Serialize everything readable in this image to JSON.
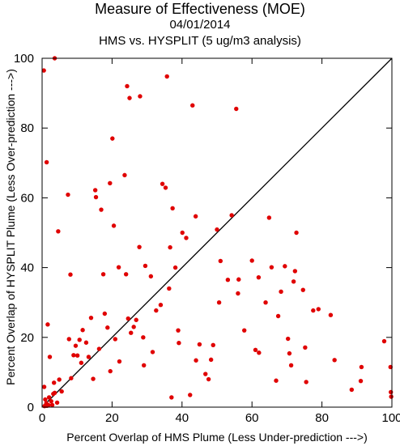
{
  "chart_data": {
    "type": "scatter",
    "title": "Measure of Effectiveness (MOE)",
    "subtitle": "04/01/2014",
    "subtitle2": "HMS vs. HYSPLIT  (5 ug/m3 analysis)",
    "xlabel": "Percent Overlap of HMS Plume (Less Under-prediction --->)",
    "ylabel": "Percent Overlap of HYSPLIT Plume (Less Over-prediction --->)",
    "xlim": [
      0,
      100
    ],
    "ylim": [
      0,
      100
    ],
    "xticks": [
      "0",
      "20",
      "40",
      "60",
      "80",
      "100"
    ],
    "yticks": [
      "0",
      "20",
      "40",
      "60",
      "80",
      "100"
    ],
    "grid": false,
    "reference_line": "y = x",
    "point_color": "#e00000",
    "line_color": "#000000",
    "points": [
      [
        0.5,
        96.5
      ],
      [
        3.6,
        100
      ],
      [
        1.3,
        70.2
      ],
      [
        4.6,
        50.4
      ],
      [
        1.6,
        23.7
      ],
      [
        2.2,
        14.4
      ],
      [
        0.6,
        5.8
      ],
      [
        0.7,
        0.3
      ],
      [
        1.2,
        1.1
      ],
      [
        1.8,
        0.6
      ],
      [
        2.6,
        1.7
      ],
      [
        3.2,
        3.8
      ],
      [
        4.3,
        1.3
      ],
      [
        4.9,
        7.9
      ],
      [
        5.6,
        4.5
      ],
      [
        3.4,
        7.0
      ],
      [
        2.0,
        2.8
      ],
      [
        0.9,
        2.2
      ],
      [
        1.4,
        0.4
      ],
      [
        2.9,
        0.6
      ],
      [
        3.6,
        4.1
      ],
      [
        7.4,
        60.9
      ],
      [
        8.1,
        38.0
      ],
      [
        7.7,
        19.5
      ],
      [
        8.3,
        8.3
      ],
      [
        9.0,
        14.9
      ],
      [
        9.6,
        17.6
      ],
      [
        10.1,
        14.8
      ],
      [
        10.7,
        19.3
      ],
      [
        11.2,
        12.7
      ],
      [
        11.6,
        22.1
      ],
      [
        12.6,
        18.5
      ],
      [
        13.3,
        14.4
      ],
      [
        14.0,
        25.6
      ],
      [
        14.6,
        8.1
      ],
      [
        15.2,
        62.2
      ],
      [
        15.4,
        60.2
      ],
      [
        16.3,
        16.7
      ],
      [
        16.9,
        56.6
      ],
      [
        17.5,
        38.1
      ],
      [
        17.9,
        26.8
      ],
      [
        18.7,
        22.8
      ],
      [
        19.5,
        10.3
      ],
      [
        19.4,
        64.2
      ],
      [
        20.1,
        77.0
      ],
      [
        20.5,
        52.0
      ],
      [
        20.9,
        19.5
      ],
      [
        21.9,
        40.1
      ],
      [
        22.1,
        13.1
      ],
      [
        23.6,
        66.5
      ],
      [
        24.0,
        38.1
      ],
      [
        24.3,
        92.0
      ],
      [
        25.0,
        88.6
      ],
      [
        24.6,
        25.4
      ],
      [
        25.4,
        21.3
      ],
      [
        26.2,
        23.0
      ],
      [
        26.9,
        25.0
      ],
      [
        27.8,
        45.9
      ],
      [
        28.0,
        89.1
      ],
      [
        29.1,
        12.0
      ],
      [
        29.5,
        40.5
      ],
      [
        28.9,
        20.0
      ],
      [
        31.1,
        37.5
      ],
      [
        31.6,
        15.8
      ],
      [
        32.6,
        27.7
      ],
      [
        33.9,
        29.3
      ],
      [
        34.4,
        64.0
      ],
      [
        35.3,
        62.9
      ],
      [
        35.7,
        94.8
      ],
      [
        36.6,
        45.8
      ],
      [
        36.3,
        34.0
      ],
      [
        37.3,
        57.0
      ],
      [
        37.0,
        2.8
      ],
      [
        38.1,
        40.0
      ],
      [
        38.9,
        22.0
      ],
      [
        39.1,
        18.4
      ],
      [
        40.1,
        50.0
      ],
      [
        41.2,
        48.5
      ],
      [
        42.3,
        3.5
      ],
      [
        43.0,
        86.5
      ],
      [
        43.9,
        54.7
      ],
      [
        44.0,
        13.4
      ],
      [
        45.0,
        18.0
      ],
      [
        46.7,
        9.5
      ],
      [
        47.6,
        8.0
      ],
      [
        48.3,
        13.6
      ],
      [
        48.9,
        17.8
      ],
      [
        50.0,
        50.9
      ],
      [
        50.6,
        30.0
      ],
      [
        51.0,
        41.9
      ],
      [
        53.1,
        36.5
      ],
      [
        54.2,
        55.0
      ],
      [
        55.5,
        85.5
      ],
      [
        56.0,
        32.6
      ],
      [
        56.2,
        36.6
      ],
      [
        57.8,
        22.0
      ],
      [
        60.0,
        42.0
      ],
      [
        61.0,
        16.4
      ],
      [
        62.0,
        15.6
      ],
      [
        61.9,
        37.2
      ],
      [
        63.9,
        30.0
      ],
      [
        64.9,
        54.3
      ],
      [
        65.6,
        40.1
      ],
      [
        66.9,
        7.6
      ],
      [
        67.5,
        26.1
      ],
      [
        68.3,
        33.1
      ],
      [
        69.4,
        40.4
      ],
      [
        70.3,
        19.6
      ],
      [
        70.7,
        15.4
      ],
      [
        71.2,
        12.0
      ],
      [
        71.9,
        36.0
      ],
      [
        72.3,
        39.0
      ],
      [
        72.7,
        50.0
      ],
      [
        74.6,
        33.6
      ],
      [
        75.2,
        17.1
      ],
      [
        75.5,
        7.2
      ],
      [
        77.5,
        27.7
      ],
      [
        79.0,
        28.1
      ],
      [
        82.5,
        26.4
      ],
      [
        83.6,
        13.5
      ],
      [
        88.5,
        5.0
      ],
      [
        91.1,
        7.5
      ],
      [
        91.3,
        11.5
      ],
      [
        97.8,
        18.9
      ],
      [
        99.6,
        11.5
      ],
      [
        99.7,
        4.3
      ],
      [
        99.8,
        3.0
      ]
    ]
  }
}
